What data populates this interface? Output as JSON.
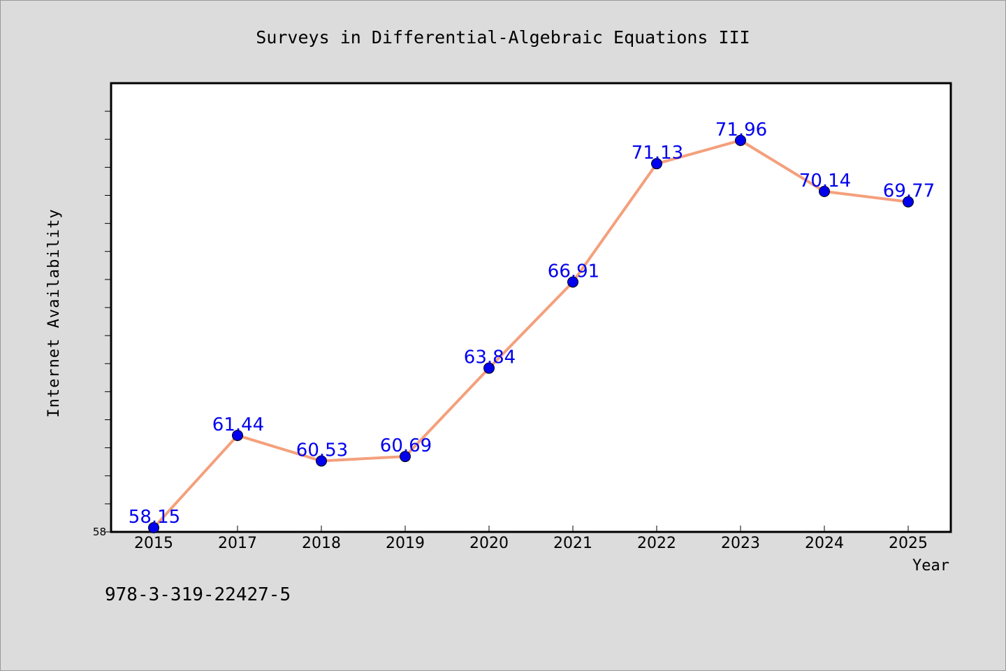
{
  "page": {
    "identifier": "978-3-319-22427-5"
  },
  "chart_data": {
    "type": "line",
    "title": "Surveys in Differential-Algebraic Equations III",
    "xlabel": "Year",
    "ylabel": "Internet Availability",
    "categories": [
      "2015",
      "2017",
      "2018",
      "2019",
      "2020",
      "2021",
      "2022",
      "2023",
      "2024",
      "2025"
    ],
    "series": [
      {
        "values": [
          58.15,
          61.44,
          60.53,
          60.69,
          63.84,
          66.91,
          71.13,
          71.96,
          70.14,
          69.77
        ],
        "line_color": "#f4a07c",
        "marker_color": "#0000ee"
      }
    ],
    "y_tick_labels": [
      "58"
    ],
    "ylim": [
      58,
      74
    ],
    "grid": false,
    "legend": "none",
    "colors": {
      "plot_background": "#ffffff",
      "figure_background": "#dcdcdc",
      "data_label": "#0000ee"
    }
  }
}
